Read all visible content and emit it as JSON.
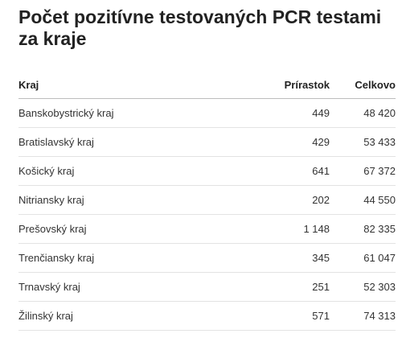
{
  "title": "Počet pozitívne testovaných PCR testami za kraje",
  "table": {
    "headers": [
      "Kraj",
      "Prírastok",
      "Celkovo"
    ],
    "rows": [
      [
        "Banskobystrický kraj",
        "449",
        "48 420"
      ],
      [
        "Bratislavský kraj",
        "429",
        "53 433"
      ],
      [
        "Košický kraj",
        "641",
        "67 372"
      ],
      [
        "Nitriansky kraj",
        "202",
        "44 550"
      ],
      [
        "Prešovský kraj",
        "1 148",
        "82 335"
      ],
      [
        "Trenčiansky kraj",
        "345",
        "61 047"
      ],
      [
        "Trnavský kraj",
        "251",
        "52 303"
      ],
      [
        "Žilinský kraj",
        "571",
        "74 313"
      ]
    ]
  }
}
